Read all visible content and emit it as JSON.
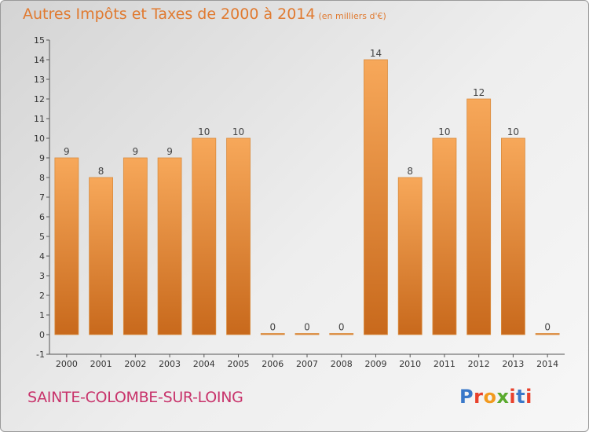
{
  "header": {
    "title": "Autres Impôts et Taxes de 2000 à 2014",
    "unit": "(en milliers d'€)"
  },
  "footer": {
    "commune": "SAINTE-COLOMBE-SUR-LOING",
    "logo": "Proxiti"
  },
  "colors": {
    "title": "#e07a30",
    "commune": "#c8336b",
    "bar_light": "#f7a85a",
    "bar_dark": "#c8691c",
    "logo_letters": [
      "#3a78c9",
      "#e8412c",
      "#f29a1f",
      "#5aaa2e",
      "#e8412c",
      "#3a78c9",
      "#e8412c"
    ]
  },
  "chart_data": {
    "type": "bar",
    "categories": [
      "2000",
      "2001",
      "2002",
      "2003",
      "2004",
      "2005",
      "2006",
      "2007",
      "2008",
      "2009",
      "2010",
      "2011",
      "2012",
      "2013",
      "2014"
    ],
    "values": [
      9,
      8,
      9,
      9,
      10,
      10,
      0,
      0,
      0,
      14,
      8,
      10,
      12,
      10,
      0
    ],
    "title": "Autres Impôts et Taxes de 2000 à 2014",
    "xlabel": "",
    "ylabel": "",
    "ylim": [
      -1,
      15
    ],
    "yticks": [
      -1,
      0,
      1,
      2,
      3,
      4,
      5,
      6,
      7,
      8,
      9,
      10,
      11,
      12,
      13,
      14,
      15
    ],
    "grid": false,
    "legend": "none"
  }
}
